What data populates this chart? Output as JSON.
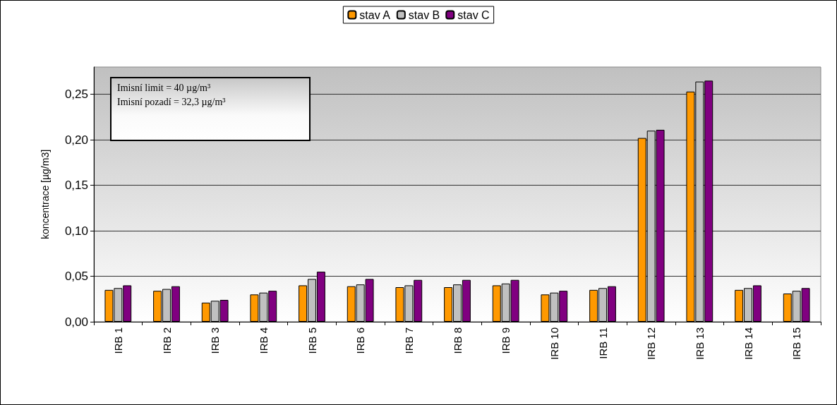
{
  "chart_data": {
    "type": "bar",
    "ylabel": "koncentrace [µg/m3]",
    "annotations": [
      "Imisní limit = 40 µg/m³",
      "Imisní pozadí = 32,3 µg/m³"
    ],
    "categories": [
      "IRB 1",
      "IRB 2",
      "IRB 3",
      "IRB 4",
      "IRB 5",
      "IRB 6",
      "IRB 7",
      "IRB 8",
      "IRB 9",
      "IRB 10",
      "IRB 11",
      "IRB 12",
      "IRB 13",
      "IRB 14",
      "IRB 15"
    ],
    "series": [
      {
        "name": "stav A",
        "color": "#ff9900",
        "values": [
          0.035,
          0.034,
          0.021,
          0.03,
          0.04,
          0.039,
          0.038,
          0.038,
          0.04,
          0.03,
          0.035,
          0.202,
          0.253,
          0.035,
          0.031
        ]
      },
      {
        "name": "stav B",
        "color": "#c0c0c0",
        "values": [
          0.037,
          0.036,
          0.023,
          0.032,
          0.047,
          0.041,
          0.04,
          0.041,
          0.042,
          0.032,
          0.037,
          0.21,
          0.264,
          0.037,
          0.034
        ]
      },
      {
        "name": "stav C",
        "color": "#800080",
        "values": [
          0.04,
          0.039,
          0.024,
          0.034,
          0.055,
          0.047,
          0.046,
          0.046,
          0.046,
          0.034,
          0.039,
          0.211,
          0.265,
          0.04,
          0.037
        ]
      }
    ],
    "ylim": [
      0,
      0.28
    ],
    "yticks": [
      {
        "value": 0,
        "label": "0,00"
      },
      {
        "value": 0.05,
        "label": "0,05"
      },
      {
        "value": 0.1,
        "label": "0,10"
      },
      {
        "value": 0.15,
        "label": "0,15"
      },
      {
        "value": 0.2,
        "label": "0,20"
      },
      {
        "value": 0.25,
        "label": "0,25"
      }
    ],
    "grid": "y",
    "legend": "top"
  }
}
